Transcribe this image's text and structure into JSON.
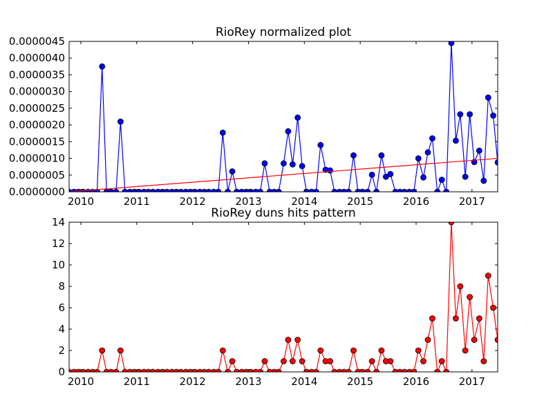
{
  "chart_data": [
    {
      "type": "line",
      "title": "RioRey normalized plot",
      "xlabel": "",
      "ylabel": "",
      "xlim": [
        2009.79,
        2017.46
      ],
      "ylim": [
        0,
        4.5e-06
      ],
      "grid": false,
      "x_ticks": [
        {
          "value": 2010,
          "label": "2010"
        },
        {
          "value": 2011,
          "label": "2011"
        },
        {
          "value": 2012,
          "label": "2012"
        },
        {
          "value": 2013,
          "label": "2013"
        },
        {
          "value": 2014,
          "label": "2014"
        },
        {
          "value": 2015,
          "label": "2015"
        },
        {
          "value": 2016,
          "label": "2016"
        },
        {
          "value": 2017,
          "label": "2017"
        }
      ],
      "y_ticks": [
        {
          "value": 0,
          "label": "0.0000000"
        },
        {
          "value": 5e-07,
          "label": "0.0000005"
        },
        {
          "value": 1e-06,
          "label": "0.0000010"
        },
        {
          "value": 1.5e-06,
          "label": "0.0000015"
        },
        {
          "value": 2e-06,
          "label": "0.0000020"
        },
        {
          "value": 2.5e-06,
          "label": "0.0000025"
        },
        {
          "value": 3e-06,
          "label": "0.0000030"
        },
        {
          "value": 3.5e-06,
          "label": "0.0000035"
        },
        {
          "value": 4e-06,
          "label": "0.0000040"
        },
        {
          "value": 4.5e-06,
          "label": "0.0000045"
        }
      ],
      "series": [
        {
          "color": "#0000ff",
          "marker": "circle",
          "points": [
            [
              2009.79,
              0
            ],
            [
              2009.88,
              0
            ],
            [
              2009.96,
              0
            ],
            [
              2010.04,
              0
            ],
            [
              2010.13,
              0
            ],
            [
              2010.21,
              0
            ],
            [
              2010.29,
              0
            ],
            [
              2010.38,
              3.75e-06
            ],
            [
              2010.46,
              0
            ],
            [
              2010.54,
              0
            ],
            [
              2010.63,
              0
            ],
            [
              2010.71,
              2.1e-06
            ],
            [
              2010.79,
              0
            ],
            [
              2010.88,
              0
            ],
            [
              2010.96,
              0
            ],
            [
              2011.04,
              0
            ],
            [
              2011.13,
              0
            ],
            [
              2011.21,
              0
            ],
            [
              2011.29,
              0
            ],
            [
              2011.38,
              0
            ],
            [
              2011.46,
              0
            ],
            [
              2011.54,
              0
            ],
            [
              2011.63,
              0
            ],
            [
              2011.71,
              0
            ],
            [
              2011.79,
              0
            ],
            [
              2011.88,
              0
            ],
            [
              2011.96,
              0
            ],
            [
              2012.04,
              0
            ],
            [
              2012.13,
              0
            ],
            [
              2012.21,
              0
            ],
            [
              2012.29,
              0
            ],
            [
              2012.38,
              0
            ],
            [
              2012.46,
              0
            ],
            [
              2012.54,
              1.77e-06
            ],
            [
              2012.63,
              0
            ],
            [
              2012.71,
              6.1e-07
            ],
            [
              2012.79,
              0
            ],
            [
              2012.88,
              0
            ],
            [
              2012.96,
              0
            ],
            [
              2013.04,
              0
            ],
            [
              2013.13,
              0
            ],
            [
              2013.21,
              0
            ],
            [
              2013.29,
              8.5e-07
            ],
            [
              2013.38,
              0
            ],
            [
              2013.46,
              0
            ],
            [
              2013.54,
              0
            ],
            [
              2013.63,
              8.5e-07
            ],
            [
              2013.71,
              1.81e-06
            ],
            [
              2013.79,
              8.2e-07
            ],
            [
              2013.88,
              2.22e-06
            ],
            [
              2013.96,
              7.7e-07
            ],
            [
              2014.04,
              0
            ],
            [
              2014.13,
              0
            ],
            [
              2014.21,
              0
            ],
            [
              2014.29,
              1.4e-06
            ],
            [
              2014.38,
              6.6e-07
            ],
            [
              2014.46,
              6.4e-07
            ],
            [
              2014.54,
              0
            ],
            [
              2014.63,
              0
            ],
            [
              2014.71,
              0
            ],
            [
              2014.79,
              0
            ],
            [
              2014.88,
              1.09e-06
            ],
            [
              2014.96,
              0
            ],
            [
              2015.04,
              0
            ],
            [
              2015.13,
              0
            ],
            [
              2015.21,
              5.1e-07
            ],
            [
              2015.29,
              0
            ],
            [
              2015.38,
              1.09e-06
            ],
            [
              2015.46,
              4.5e-07
            ],
            [
              2015.54,
              5.3e-07
            ],
            [
              2015.63,
              0
            ],
            [
              2015.71,
              0
            ],
            [
              2015.79,
              0
            ],
            [
              2015.88,
              0
            ],
            [
              2015.96,
              0
            ],
            [
              2016.04,
              1e-06
            ],
            [
              2016.13,
              4.3e-07
            ],
            [
              2016.21,
              1.18e-06
            ],
            [
              2016.29,
              1.6e-06
            ],
            [
              2016.38,
              0
            ],
            [
              2016.46,
              3.6e-07
            ],
            [
              2016.54,
              0
            ],
            [
              2016.63,
              4.45e-06
            ],
            [
              2016.71,
              1.53e-06
            ],
            [
              2016.79,
              2.32e-06
            ],
            [
              2016.88,
              4.5e-07
            ],
            [
              2016.96,
              2.32e-06
            ],
            [
              2017.04,
              8.9e-07
            ],
            [
              2017.13,
              1.23e-06
            ],
            [
              2017.21,
              3.3e-07
            ],
            [
              2017.29,
              2.82e-06
            ],
            [
              2017.38,
              2.28e-06
            ],
            [
              2017.46,
              8.8e-07
            ]
          ]
        },
        {
          "color": "#ff0000",
          "marker": "none",
          "points": [
            [
              2009.79,
              0
            ],
            [
              2017.46,
              1e-06
            ]
          ]
        }
      ]
    },
    {
      "type": "line",
      "title": "RioRey duns hits pattern",
      "xlabel": "",
      "ylabel": "",
      "xlim": [
        2009.79,
        2017.46
      ],
      "ylim": [
        0,
        14
      ],
      "grid": false,
      "x_ticks": [
        {
          "value": 2010,
          "label": "2010"
        },
        {
          "value": 2011,
          "label": "2011"
        },
        {
          "value": 2012,
          "label": "2012"
        },
        {
          "value": 2013,
          "label": "2013"
        },
        {
          "value": 2014,
          "label": "2014"
        },
        {
          "value": 2015,
          "label": "2015"
        },
        {
          "value": 2016,
          "label": "2016"
        },
        {
          "value": 2017,
          "label": "2017"
        }
      ],
      "y_ticks": [
        {
          "value": 0,
          "label": "0"
        },
        {
          "value": 2,
          "label": "2"
        },
        {
          "value": 4,
          "label": "4"
        },
        {
          "value": 6,
          "label": "6"
        },
        {
          "value": 8,
          "label": "8"
        },
        {
          "value": 10,
          "label": "10"
        },
        {
          "value": 12,
          "label": "12"
        },
        {
          "value": 14,
          "label": "14"
        }
      ],
      "series": [
        {
          "color": "#ff0000",
          "marker": "circle",
          "points": [
            [
              2009.79,
              0
            ],
            [
              2009.88,
              0
            ],
            [
              2009.96,
              0
            ],
            [
              2010.04,
              0
            ],
            [
              2010.13,
              0
            ],
            [
              2010.21,
              0
            ],
            [
              2010.29,
              0
            ],
            [
              2010.38,
              2
            ],
            [
              2010.46,
              0
            ],
            [
              2010.54,
              0
            ],
            [
              2010.63,
              0
            ],
            [
              2010.71,
              2
            ],
            [
              2010.79,
              0
            ],
            [
              2010.88,
              0
            ],
            [
              2010.96,
              0
            ],
            [
              2011.04,
              0
            ],
            [
              2011.13,
              0
            ],
            [
              2011.21,
              0
            ],
            [
              2011.29,
              0
            ],
            [
              2011.38,
              0
            ],
            [
              2011.46,
              0
            ],
            [
              2011.54,
              0
            ],
            [
              2011.63,
              0
            ],
            [
              2011.71,
              0
            ],
            [
              2011.79,
              0
            ],
            [
              2011.88,
              0
            ],
            [
              2011.96,
              0
            ],
            [
              2012.04,
              0
            ],
            [
              2012.13,
              0
            ],
            [
              2012.21,
              0
            ],
            [
              2012.29,
              0
            ],
            [
              2012.38,
              0
            ],
            [
              2012.46,
              0
            ],
            [
              2012.54,
              2
            ],
            [
              2012.63,
              0
            ],
            [
              2012.71,
              1
            ],
            [
              2012.79,
              0
            ],
            [
              2012.88,
              0
            ],
            [
              2012.96,
              0
            ],
            [
              2013.04,
              0
            ],
            [
              2013.13,
              0
            ],
            [
              2013.21,
              0
            ],
            [
              2013.29,
              1
            ],
            [
              2013.38,
              0
            ],
            [
              2013.46,
              0
            ],
            [
              2013.54,
              0
            ],
            [
              2013.63,
              1
            ],
            [
              2013.71,
              3
            ],
            [
              2013.79,
              1
            ],
            [
              2013.88,
              3
            ],
            [
              2013.96,
              1
            ],
            [
              2014.04,
              0
            ],
            [
              2014.13,
              0
            ],
            [
              2014.21,
              0
            ],
            [
              2014.29,
              2
            ],
            [
              2014.38,
              1
            ],
            [
              2014.46,
              1
            ],
            [
              2014.54,
              0
            ],
            [
              2014.63,
              0
            ],
            [
              2014.71,
              0
            ],
            [
              2014.79,
              0
            ],
            [
              2014.88,
              2
            ],
            [
              2014.96,
              0
            ],
            [
              2015.04,
              0
            ],
            [
              2015.13,
              0
            ],
            [
              2015.21,
              1
            ],
            [
              2015.29,
              0
            ],
            [
              2015.38,
              2
            ],
            [
              2015.46,
              1
            ],
            [
              2015.54,
              1
            ],
            [
              2015.63,
              0
            ],
            [
              2015.71,
              0
            ],
            [
              2015.79,
              0
            ],
            [
              2015.88,
              0
            ],
            [
              2015.96,
              0
            ],
            [
              2016.04,
              2
            ],
            [
              2016.13,
              1
            ],
            [
              2016.21,
              3
            ],
            [
              2016.29,
              5
            ],
            [
              2016.38,
              0
            ],
            [
              2016.46,
              1
            ],
            [
              2016.54,
              0
            ],
            [
              2016.63,
              14
            ],
            [
              2016.71,
              5
            ],
            [
              2016.79,
              8
            ],
            [
              2016.88,
              2
            ],
            [
              2016.96,
              7
            ],
            [
              2017.04,
              3
            ],
            [
              2017.13,
              5
            ],
            [
              2017.21,
              1
            ],
            [
              2017.29,
              9
            ],
            [
              2017.38,
              6
            ],
            [
              2017.46,
              3
            ]
          ]
        }
      ]
    }
  ]
}
